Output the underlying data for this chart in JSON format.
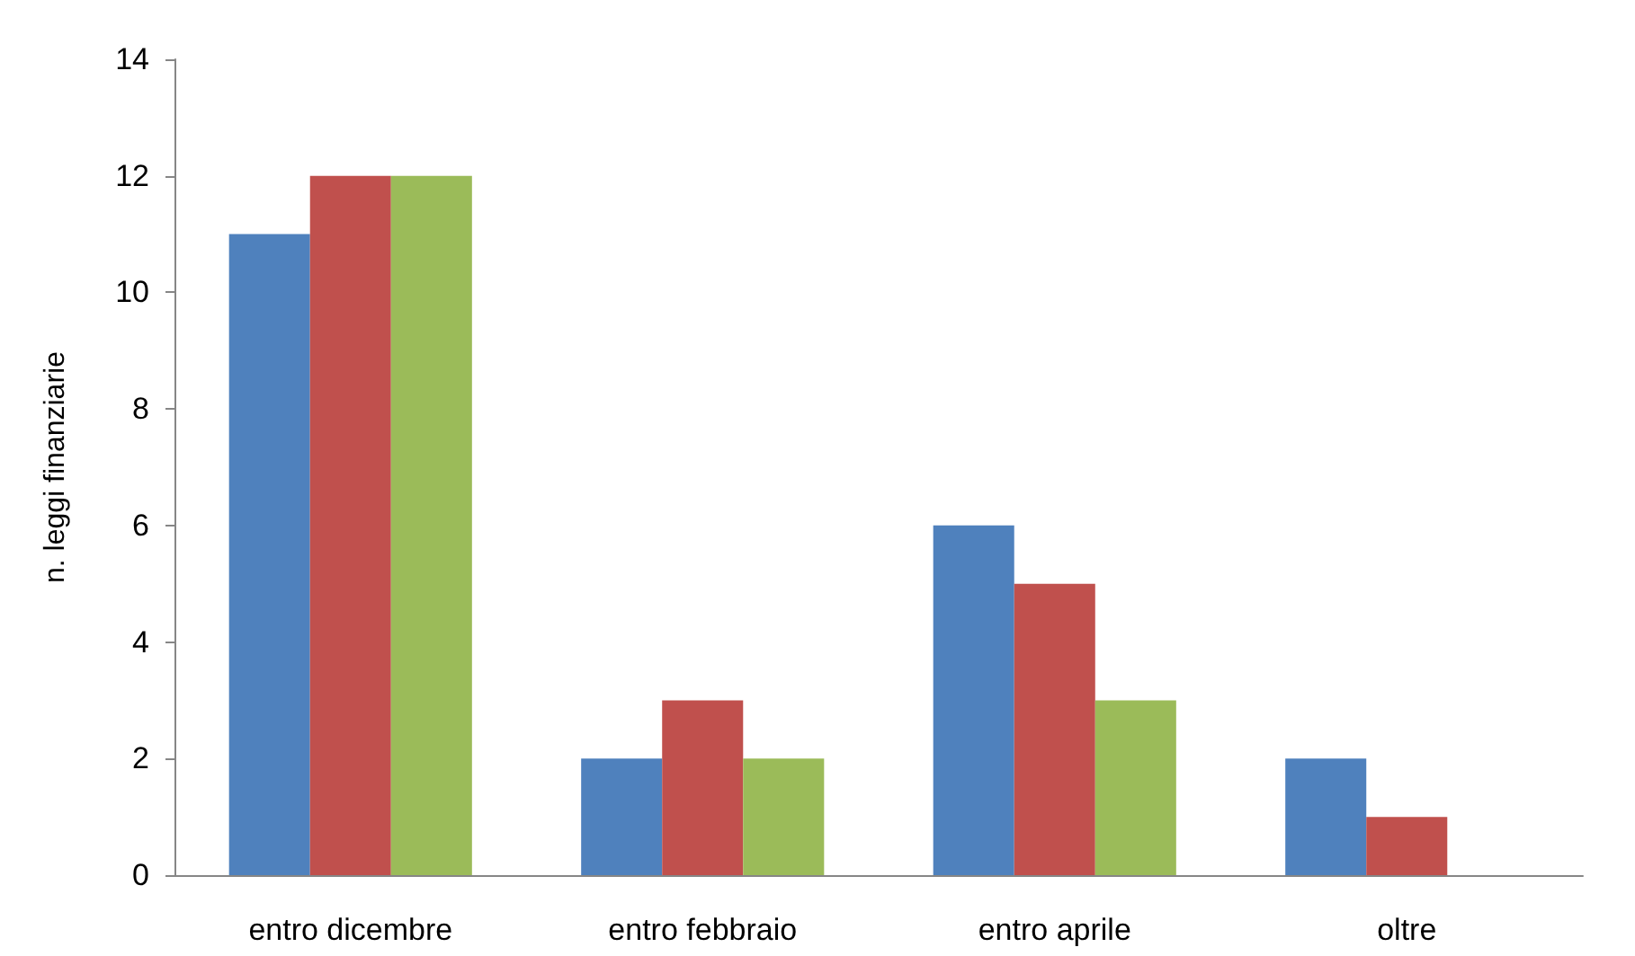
{
  "chart_data": {
    "type": "bar",
    "ylabel": "n. leggi finanziarie",
    "categories": [
      "entro dicembre",
      "entro febbraio",
      "entro aprile",
      "oltre"
    ],
    "series": [
      {
        "color": "#4f81bd",
        "values": [
          11,
          2,
          6,
          2
        ]
      },
      {
        "color": "#c0504d",
        "values": [
          12,
          3,
          5,
          1
        ]
      },
      {
        "color": "#9bbb59",
        "values": [
          12,
          2,
          3,
          0
        ]
      }
    ],
    "ylim": [
      0,
      14
    ],
    "yticks": [
      0,
      2,
      4,
      6,
      8,
      10,
      12,
      14
    ]
  }
}
